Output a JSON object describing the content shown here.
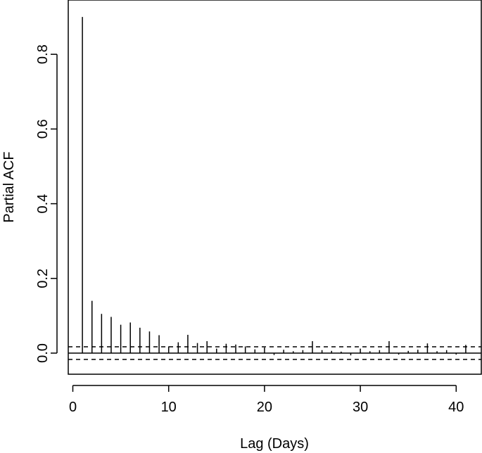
{
  "chart_data": {
    "type": "bar",
    "style": "vertical-spikes",
    "xlabel": "Lag (Days)",
    "ylabel": "Partial ACF",
    "xlim": [
      -0.5,
      42.5
    ],
    "ylim": [
      -0.055,
      0.93
    ],
    "x_ticks": [
      0,
      10,
      20,
      30,
      40
    ],
    "y_ticks": [
      0.0,
      0.2,
      0.4,
      0.6,
      0.8
    ],
    "x_tick_labels": [
      "0",
      "10",
      "20",
      "30",
      "40"
    ],
    "y_tick_labels": [
      "0.0",
      "0.2",
      "0.4",
      "0.6",
      "0.8"
    ],
    "confidence_bounds": [
      0.017,
      -0.017
    ],
    "grid": false,
    "legend": "none",
    "series": [
      {
        "lags": [
          1,
          2,
          3,
          4,
          5,
          6,
          7,
          8,
          9,
          10,
          11,
          12,
          13,
          14,
          15,
          16,
          17,
          18,
          19,
          20,
          21,
          22,
          23,
          24,
          25,
          26,
          27,
          28,
          29,
          30,
          31,
          32,
          33,
          34,
          35,
          36,
          37,
          38,
          39,
          40,
          41
        ],
        "values": [
          0.9,
          0.14,
          0.105,
          0.097,
          0.076,
          0.082,
          0.068,
          0.058,
          0.048,
          0.018,
          0.029,
          0.049,
          0.027,
          0.032,
          0.012,
          0.025,
          0.023,
          0.018,
          0.01,
          0.015,
          -0.005,
          0.009,
          0.005,
          0.008,
          0.032,
          0.008,
          0.006,
          0.004,
          -0.006,
          0.012,
          0.005,
          0.008,
          0.032,
          -0.004,
          0.006,
          0.009,
          0.026,
          0.005,
          0.008,
          -0.004,
          0.022
        ]
      }
    ],
    "colors": {
      "line": "#000000",
      "background": "#ffffff"
    }
  }
}
